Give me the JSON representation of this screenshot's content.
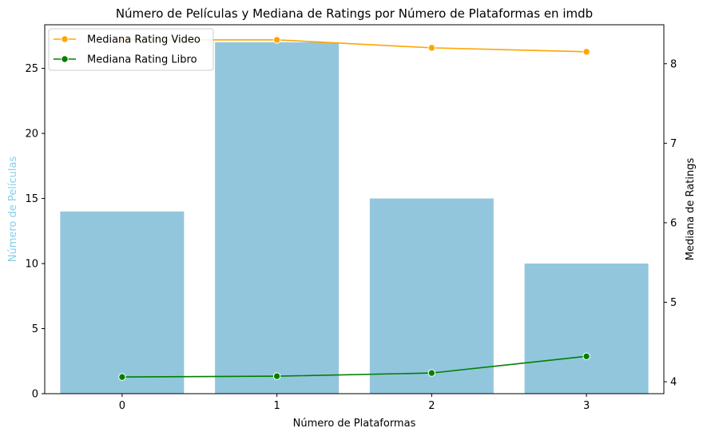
{
  "chart_data": {
    "type": "bar",
    "title": "Número de Películas y Mediana de Ratings por Número de Plataformas en imdb",
    "xlabel": "Número de Plataformas",
    "ylabel_left": "Número de Películas",
    "ylabel_right": "Mediana de Ratings",
    "categories": [
      "0",
      "1",
      "2",
      "3"
    ],
    "bar_series": {
      "name": "Número de Películas",
      "values": [
        14,
        27,
        15,
        10
      ],
      "color": "#92c6dd"
    },
    "left_axis": {
      "ylim": [
        0,
        28.35
      ],
      "ticks": [
        0,
        5,
        10,
        15,
        20,
        25
      ]
    },
    "right_axis": {
      "ylim": [
        3.85,
        8.49
      ],
      "ticks": [
        4,
        5,
        6,
        7,
        8
      ]
    },
    "line_series": [
      {
        "name": "Mediana Rating Video",
        "values": [
          8.3,
          8.3,
          8.2,
          8.15
        ],
        "color": "#ffa500"
      },
      {
        "name": "Mediana Rating Libro",
        "values": [
          4.06,
          4.07,
          4.11,
          4.32
        ],
        "color": "#008000"
      }
    ],
    "left_ylabel_color": "#87ceeb",
    "legend_position": "top-left",
    "grid": false
  }
}
